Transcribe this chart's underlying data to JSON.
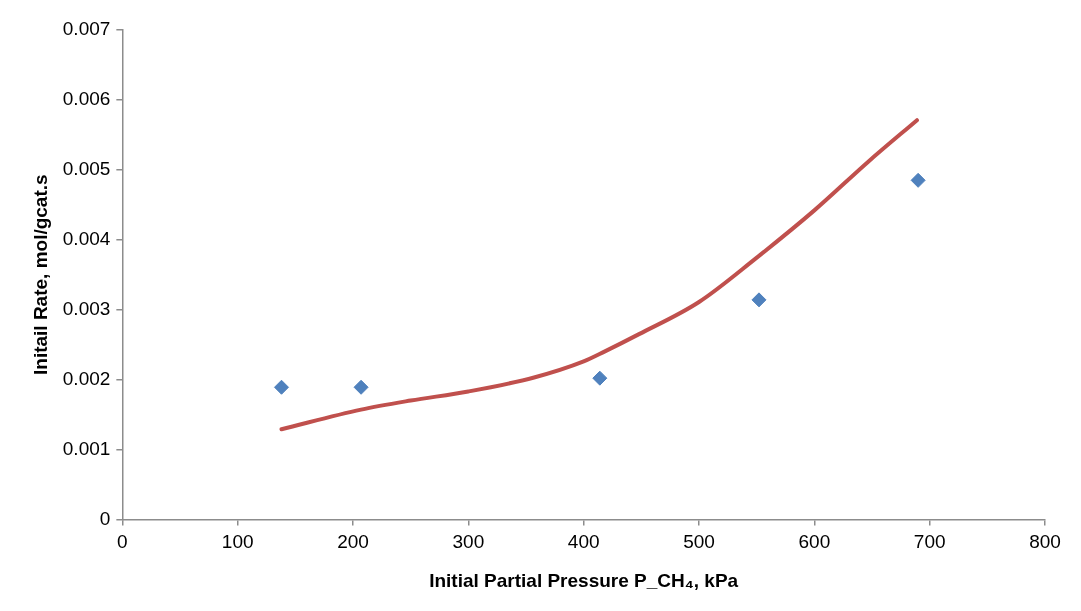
{
  "chart_data": {
    "type": "scatter",
    "xlabel": "Initial Partial Pressure P_CH₄, kPa",
    "ylabel": "Initail Rate, mol/gcat.s",
    "xlim": [
      0,
      800
    ],
    "xticks": [
      0,
      100,
      200,
      300,
      400,
      500,
      600,
      700,
      800
    ],
    "ylim": [
      0,
      0.007
    ],
    "yticks": [
      0,
      0.001,
      0.002,
      0.003,
      0.004,
      0.005,
      0.006,
      0.007
    ],
    "grid": false,
    "legend": false,
    "series": [
      {
        "type": "scatter",
        "color": "#4f81bd",
        "marker": "diamond",
        "x": [
          138,
          207,
          414,
          552,
          690
        ],
        "values": [
          0.00189,
          0.00189,
          0.00202,
          0.00314,
          0.00485
        ]
      },
      {
        "type": "line",
        "color": "#c0504d",
        "marker": "none",
        "line_style": "solid",
        "x": [
          138,
          207,
          250,
          300,
          357,
          400,
          418,
          448,
          500,
          549,
          600,
          647,
          689
        ],
        "values": [
          0.00129,
          0.00157,
          0.0017,
          0.00183,
          0.00203,
          0.00226,
          0.0024,
          0.00265,
          0.00311,
          0.00373,
          0.00442,
          0.00512,
          0.00571
        ]
      }
    ]
  }
}
